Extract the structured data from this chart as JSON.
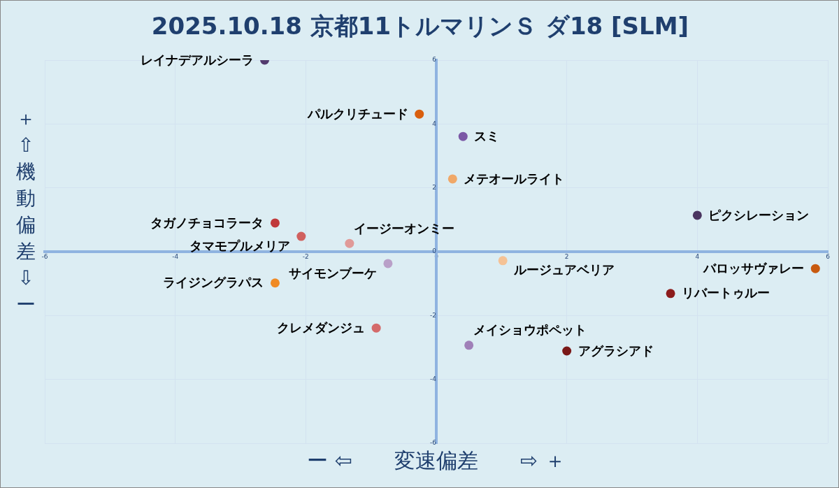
{
  "chart_data": {
    "type": "scatter",
    "title": "2025.10.18 京都11トルマリンＳ ダ18 [SLM]",
    "xlabel": "ー ⇦　　変速偏差　　⇨ ＋",
    "ylabel": "＋⇧機動偏差⇩ー",
    "xlim": [
      -6,
      6
    ],
    "xticks": [
      -6,
      -4,
      -2,
      0,
      2,
      4,
      6
    ],
    "ylim": [
      -6,
      6
    ],
    "yticks": [
      -6,
      -4,
      -2,
      0,
      2,
      4,
      6
    ],
    "grid": true,
    "legend": false,
    "marker": "circle",
    "series": [
      {
        "name": "レイナデアルシーラ",
        "color": "#533a6e",
        "x": [
          -2.63
        ],
        "values": [
          6.0
        ]
      },
      {
        "name": "パルクリチュード",
        "color": "#d95f0e",
        "x": [
          -0.26
        ],
        "values": [
          4.31
        ]
      },
      {
        "name": "スミ",
        "color": "#7b58a6",
        "x": [
          0.41
        ],
        "values": [
          3.61
        ]
      },
      {
        "name": "メテオールライト",
        "color": "#f0a868",
        "x": [
          0.25
        ],
        "values": [
          2.28
        ]
      },
      {
        "name": "ピクシレーション",
        "color": "#4a3560",
        "x": [
          4.0
        ],
        "values": [
          1.14
        ]
      },
      {
        "name": "タガノチョコラータ",
        "color": "#c0393b",
        "x": [
          -2.47
        ],
        "values": [
          0.9
        ]
      },
      {
        "name": "タマモプルメリア",
        "color": "#d0605e",
        "x": [
          -2.07
        ],
        "values": [
          0.48
        ]
      },
      {
        "name": "イージーオンミー",
        "color": "#e09a98",
        "x": [
          -1.33
        ],
        "values": [
          0.26
        ]
      },
      {
        "name": "ルージュアベリア",
        "color": "#f5c295",
        "x": [
          1.02
        ],
        "values": [
          -0.28
        ]
      },
      {
        "name": "サイモンブーケ",
        "color": "#b9a0c8",
        "x": [
          -0.74
        ],
        "values": [
          -0.37
        ]
      },
      {
        "name": "バロッサヴァレー",
        "color": "#c85a10",
        "x": [
          5.81
        ],
        "values": [
          -0.53
        ]
      },
      {
        "name": "ライジングラパス",
        "color": "#f08a24",
        "x": [
          -2.47
        ],
        "values": [
          -0.98
        ]
      },
      {
        "name": "リバートゥルー",
        "color": "#8c1c1c",
        "x": [
          3.59
        ],
        "values": [
          -1.31
        ]
      },
      {
        "name": "クレメダンジュ",
        "color": "#d46a6a",
        "x": [
          -0.92
        ],
        "values": [
          -2.39
        ]
      },
      {
        "name": "メイショウポペット",
        "color": "#a080b8",
        "x": [
          0.5
        ],
        "values": [
          -2.93
        ]
      },
      {
        "name": "アグラシアド",
        "color": "#7a1818",
        "x": [
          2.0
        ],
        "values": [
          -3.11
        ]
      }
    ]
  }
}
